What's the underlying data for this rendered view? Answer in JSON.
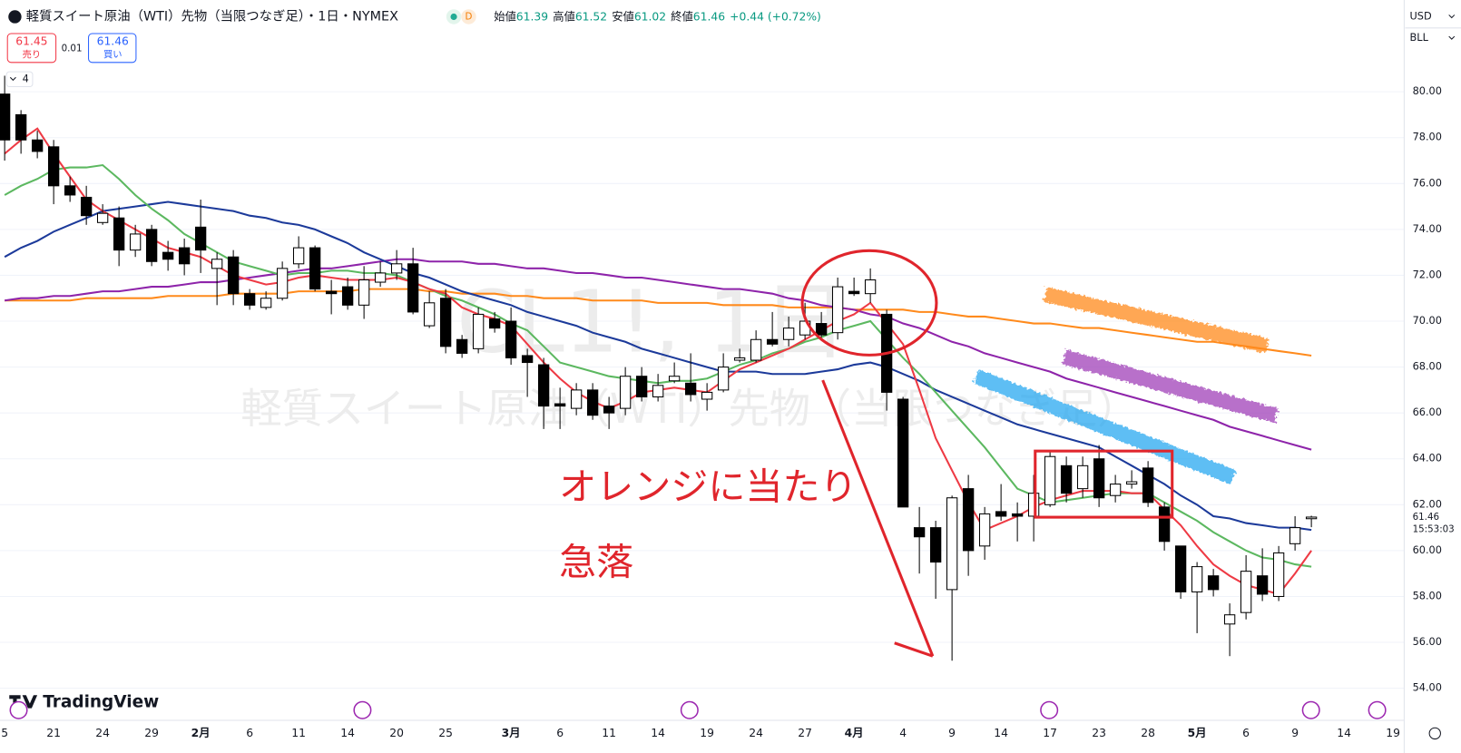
{
  "header": {
    "title": "軽質スイート原油（WTI）先物（当限つなぎ足）・1日・NYMEX",
    "badge": "D",
    "ohlc": [
      {
        "label": "始値",
        "value": "61.39"
      },
      {
        "label": "高値",
        "value": "61.52"
      },
      {
        "label": "安値",
        "value": "61.02"
      },
      {
        "label": "終値",
        "value": "61.46"
      }
    ],
    "change": "+0.44 (+0.72%)",
    "sell_price": "61.45",
    "sell_label": "売り",
    "spread": "0.01",
    "buy_price": "61.46",
    "buy_label": "買い",
    "indicator_count": "4",
    "currency": "USD",
    "unit": "BLL",
    "logo": "TradingView"
  },
  "chart_data": {
    "type": "candlestick",
    "watermark": "CL1!, 1日",
    "watermark_subtitle": "軽質スイート原油（WTI）先物（当限つなぎ足）",
    "annotations": [
      "オレンジに当たり",
      "急落"
    ],
    "countdown": "15:53:03",
    "categories": [
      "5",
      null,
      null,
      "21",
      null,
      null,
      "24",
      null,
      null,
      "29",
      null,
      null,
      "2月",
      null,
      null,
      "6",
      null,
      null,
      "11",
      null,
      null,
      "14",
      null,
      null,
      "20",
      null,
      null,
      "25",
      null,
      null,
      null,
      "3月",
      null,
      null,
      "6",
      null,
      null,
      "11",
      null,
      null,
      "14",
      null,
      null,
      "19",
      null,
      null,
      "24",
      null,
      null,
      "27",
      null,
      null,
      "4月",
      null,
      null,
      "4",
      null,
      null,
      "9",
      null,
      null,
      "14",
      null,
      null,
      "17",
      null,
      null,
      "23",
      null,
      null,
      "28",
      null,
      null,
      "5月",
      null,
      null,
      "6",
      null,
      null,
      "9",
      null,
      null,
      "14",
      null,
      null,
      "19"
    ],
    "candles": {
      "open": [
        79.9,
        79.0,
        77.9,
        77.6,
        75.9,
        75.4,
        74.3,
        74.5,
        73.1,
        74.0,
        73.0,
        73.2,
        74.1,
        72.3,
        72.8,
        71.2,
        70.6,
        71.0,
        72.5,
        73.2,
        71.3,
        71.5,
        70.7,
        71.7,
        72.1,
        72.5,
        69.8,
        71.0,
        69.2,
        68.8,
        70.1,
        70.0,
        68.5,
        68.1,
        66.4,
        66.2,
        67.0,
        66.3,
        66.2,
        67.6,
        66.7,
        67.4,
        67.3,
        66.6,
        67.0,
        68.3,
        68.3,
        69.2,
        69.2,
        69.4,
        69.9,
        69.5,
        71.3,
        71.2,
        70.3,
        66.6,
        61.0,
        61.0,
        58.3,
        62.7,
        60.2,
        61.7,
        61.6,
        61.5,
        62.0,
        63.7,
        62.7,
        64.0,
        62.4,
        62.9,
        63.6,
        61.9,
        60.2,
        58.2,
        58.9,
        56.8,
        57.3,
        58.9,
        58.0,
        60.3,
        61.39,
        null,
        null,
        null,
        null,
        null
      ],
      "high": [
        80.7,
        79.2,
        78.3,
        77.9,
        76.3,
        75.9,
        75.1,
        75.0,
        74.2,
        74.2,
        73.5,
        73.6,
        75.3,
        73.0,
        73.1,
        71.4,
        71.3,
        72.6,
        73.7,
        73.3,
        71.8,
        71.9,
        72.4,
        72.6,
        73.1,
        73.2,
        71.3,
        71.4,
        69.4,
        70.6,
        70.4,
        70.6,
        68.8,
        68.4,
        67.1,
        67.3,
        67.3,
        66.7,
        68.0,
        68.0,
        67.7,
        68.2,
        68.6,
        67.3,
        68.6,
        68.8,
        69.6,
        70.4,
        70.2,
        70.8,
        70.4,
        71.9,
        71.9,
        72.3,
        70.5,
        66.7,
        61.9,
        61.3,
        62.4,
        63.3,
        61.9,
        62.9,
        62.1,
        63.3,
        64.3,
        64.1,
        64.1,
        64.6,
        63.3,
        63.5,
        63.9,
        62.1,
        60.2,
        59.5,
        59.2,
        57.7,
        59.8,
        60.1,
        60.2,
        61.5,
        61.52,
        null,
        null,
        null,
        null,
        null
      ],
      "low": [
        77.0,
        77.3,
        77.1,
        75.1,
        75.2,
        74.2,
        74.2,
        72.4,
        72.8,
        72.4,
        72.2,
        72.0,
        72.1,
        70.7,
        70.7,
        70.5,
        70.5,
        70.9,
        72.3,
        71.3,
        70.3,
        70.5,
        70.1,
        71.5,
        71.8,
        70.3,
        69.7,
        68.6,
        68.4,
        68.6,
        69.5,
        68.1,
        66.7,
        65.3,
        65.3,
        65.9,
        65.7,
        65.3,
        65.9,
        66.5,
        66.5,
        67.3,
        66.5,
        66.1,
        66.9,
        68.2,
        68.2,
        68.9,
        68.9,
        69.2,
        69.3,
        69.2,
        71.1,
        70.8,
        66.1,
        61.9,
        59.0,
        57.9,
        55.2,
        58.9,
        59.6,
        61.3,
        60.4,
        60.4,
        61.9,
        62.1,
        62.3,
        61.9,
        62.1,
        62.7,
        61.9,
        60.0,
        57.9,
        56.4,
        58.0,
        55.4,
        57.0,
        57.8,
        57.8,
        60.0,
        61.02,
        null,
        null,
        null,
        null,
        null
      ],
      "close": [
        77.9,
        77.9,
        77.4,
        75.9,
        75.5,
        74.6,
        74.7,
        73.1,
        73.8,
        72.6,
        72.7,
        72.5,
        73.1,
        72.7,
        71.2,
        70.7,
        71.0,
        72.3,
        73.2,
        71.4,
        71.2,
        70.7,
        71.8,
        72.1,
        72.5,
        70.4,
        70.8,
        68.9,
        68.6,
        70.3,
        69.7,
        68.4,
        68.2,
        66.3,
        66.3,
        67.0,
        65.9,
        66.0,
        67.6,
        66.7,
        67.2,
        67.6,
        66.8,
        66.9,
        68.0,
        68.4,
        69.2,
        69.0,
        69.7,
        70.0,
        69.4,
        71.5,
        71.2,
        71.8,
        66.9,
        61.9,
        60.6,
        59.5,
        62.3,
        60.0,
        61.6,
        61.5,
        61.5,
        62.5,
        64.1,
        62.5,
        63.7,
        62.3,
        62.9,
        63.0,
        62.1,
        60.4,
        58.2,
        59.3,
        58.3,
        57.2,
        59.1,
        58.1,
        59.9,
        61.0,
        61.46,
        null,
        null,
        null,
        null,
        null
      ]
    },
    "up_color": "#ffffff",
    "down_color": "#000000",
    "wick_color": "#000000",
    "series": [
      {
        "color": "#ff8a1c",
        "values": [
          70.9,
          70.9,
          70.9,
          70.9,
          70.9,
          71.0,
          71.0,
          71.0,
          71.0,
          71.0,
          71.1,
          71.1,
          71.1,
          71.1,
          71.2,
          71.2,
          71.2,
          71.2,
          71.3,
          71.3,
          71.3,
          71.3,
          71.4,
          71.4,
          71.4,
          71.4,
          71.3,
          71.3,
          71.2,
          71.2,
          71.2,
          71.1,
          71.1,
          71.0,
          71.0,
          71.0,
          70.9,
          70.9,
          70.9,
          70.9,
          70.8,
          70.8,
          70.8,
          70.8,
          70.7,
          70.7,
          70.7,
          70.7,
          70.6,
          70.6,
          70.6,
          70.6,
          70.5,
          70.5,
          70.5,
          70.5,
          70.4,
          70.4,
          70.3,
          70.2,
          70.2,
          70.1,
          70.0,
          69.9,
          69.9,
          69.8,
          69.7,
          69.7,
          69.6,
          69.5,
          69.4,
          69.3,
          69.2,
          69.1,
          69.1,
          69.0,
          68.9,
          68.8,
          68.7,
          68.6,
          68.5,
          null,
          null,
          null,
          null,
          null
        ]
      },
      {
        "color": "#8e24aa",
        "values": [
          70.9,
          71.0,
          71.0,
          71.1,
          71.1,
          71.2,
          71.3,
          71.3,
          71.4,
          71.5,
          71.5,
          71.6,
          71.7,
          71.7,
          71.8,
          71.9,
          72.0,
          72.1,
          72.2,
          72.3,
          72.3,
          72.4,
          72.5,
          72.6,
          72.7,
          72.7,
          72.6,
          72.6,
          72.6,
          72.5,
          72.5,
          72.4,
          72.3,
          72.3,
          72.2,
          72.1,
          72.1,
          72.0,
          71.9,
          71.9,
          71.8,
          71.7,
          71.6,
          71.5,
          71.4,
          71.4,
          71.3,
          71.2,
          71.0,
          70.9,
          70.7,
          70.6,
          70.5,
          70.3,
          70.2,
          69.9,
          69.7,
          69.4,
          69.1,
          68.9,
          68.6,
          68.4,
          68.2,
          68.0,
          67.8,
          67.5,
          67.3,
          67.1,
          66.9,
          66.7,
          66.5,
          66.3,
          66.1,
          65.9,
          65.7,
          65.4,
          65.2,
          65.0,
          64.8,
          64.6,
          64.4,
          null,
          null,
          null,
          null,
          null
        ]
      },
      {
        "color": "#1c3a9a",
        "values": [
          72.8,
          73.2,
          73.5,
          73.9,
          74.2,
          74.5,
          74.8,
          74.9,
          75.0,
          75.1,
          75.2,
          75.1,
          75.0,
          74.9,
          74.8,
          74.6,
          74.5,
          74.3,
          74.2,
          74.0,
          73.7,
          73.4,
          73.0,
          72.7,
          72.4,
          72.1,
          71.9,
          71.6,
          71.3,
          71.1,
          70.9,
          70.7,
          70.4,
          70.2,
          70.0,
          69.8,
          69.5,
          69.3,
          69.1,
          68.8,
          68.6,
          68.4,
          68.2,
          68.0,
          67.8,
          67.8,
          67.8,
          67.7,
          67.7,
          67.7,
          67.8,
          67.9,
          68.1,
          68.2,
          68.0,
          67.7,
          67.4,
          67.0,
          66.7,
          66.4,
          66.1,
          65.8,
          65.5,
          65.3,
          65.1,
          64.9,
          64.7,
          64.5,
          64.1,
          63.7,
          63.3,
          62.9,
          62.4,
          62.0,
          61.5,
          61.4,
          61.2,
          61.1,
          61.0,
          61.0,
          60.9,
          null,
          null,
          null,
          null,
          null
        ]
      },
      {
        "color": "#5cb860",
        "values": [
          75.5,
          75.9,
          76.2,
          76.6,
          76.7,
          76.7,
          76.8,
          76.2,
          75.5,
          74.9,
          74.4,
          73.8,
          73.4,
          73.0,
          72.6,
          72.4,
          72.2,
          72.0,
          72.1,
          72.1,
          72.2,
          72.2,
          72.1,
          72.1,
          72.0,
          71.7,
          71.4,
          71.1,
          70.9,
          70.6,
          70.3,
          69.9,
          69.6,
          68.9,
          68.2,
          68.0,
          67.8,
          67.6,
          67.5,
          67.4,
          67.3,
          67.4,
          67.4,
          67.5,
          67.8,
          68.1,
          68.3,
          68.6,
          68.8,
          69.1,
          69.3,
          69.6,
          69.8,
          70.0,
          69.2,
          68.4,
          67.7,
          66.9,
          66.1,
          65.3,
          64.5,
          63.6,
          62.7,
          62.4,
          62.1,
          62.2,
          62.3,
          62.4,
          62.5,
          62.5,
          62.5,
          62.1,
          61.7,
          61.3,
          60.8,
          60.4,
          60.0,
          59.7,
          59.6,
          59.4,
          59.3,
          null,
          null,
          null,
          null,
          null
        ]
      },
      {
        "color": "#ee3a44",
        "values": [
          77.3,
          77.9,
          78.4,
          77.3,
          76.3,
          75.3,
          74.8,
          74.4,
          74.0,
          73.6,
          73.2,
          73.0,
          72.8,
          72.4,
          72.0,
          71.8,
          71.6,
          71.7,
          71.9,
          72.0,
          71.9,
          71.8,
          71.8,
          71.8,
          71.9,
          71.7,
          71.4,
          71.2,
          70.6,
          70.3,
          70.1,
          69.8,
          69.0,
          68.2,
          67.5,
          66.9,
          66.5,
          66.2,
          66.5,
          66.9,
          67.0,
          67.1,
          67.0,
          66.9,
          67.4,
          67.9,
          68.2,
          68.5,
          68.8,
          69.2,
          69.6,
          70.0,
          70.3,
          70.8,
          69.9,
          69.0,
          67.0,
          64.9,
          63.5,
          62.1,
          60.9,
          61.2,
          61.5,
          61.9,
          62.2,
          62.4,
          62.6,
          62.6,
          62.6,
          62.5,
          62.5,
          61.8,
          61.1,
          60.2,
          59.4,
          58.9,
          58.5,
          58.3,
          58.1,
          59.0,
          60.0,
          null,
          null,
          null,
          null,
          null
        ]
      }
    ],
    "ylim": [
      52.6,
      84.0
    ],
    "yticks": [
      {
        "value": 54,
        "label": "54.00"
      },
      {
        "value": 56,
        "label": "56.00"
      },
      {
        "value": 58,
        "label": "58.00"
      },
      {
        "value": 60,
        "label": "60.00"
      },
      {
        "value": 62,
        "label": "62.00"
      },
      {
        "value": 64,
        "label": "64.00"
      },
      {
        "value": 66,
        "label": "66.00"
      },
      {
        "value": 68,
        "label": "68.00"
      },
      {
        "value": 70,
        "label": "70.00"
      },
      {
        "value": 72,
        "label": "72.00"
      },
      {
        "value": 74,
        "label": "74.00"
      },
      {
        "value": 76,
        "label": "76.00"
      },
      {
        "value": 78,
        "label": "78.00"
      },
      {
        "value": 80,
        "label": "80.00"
      }
    ],
    "grid": true
  }
}
